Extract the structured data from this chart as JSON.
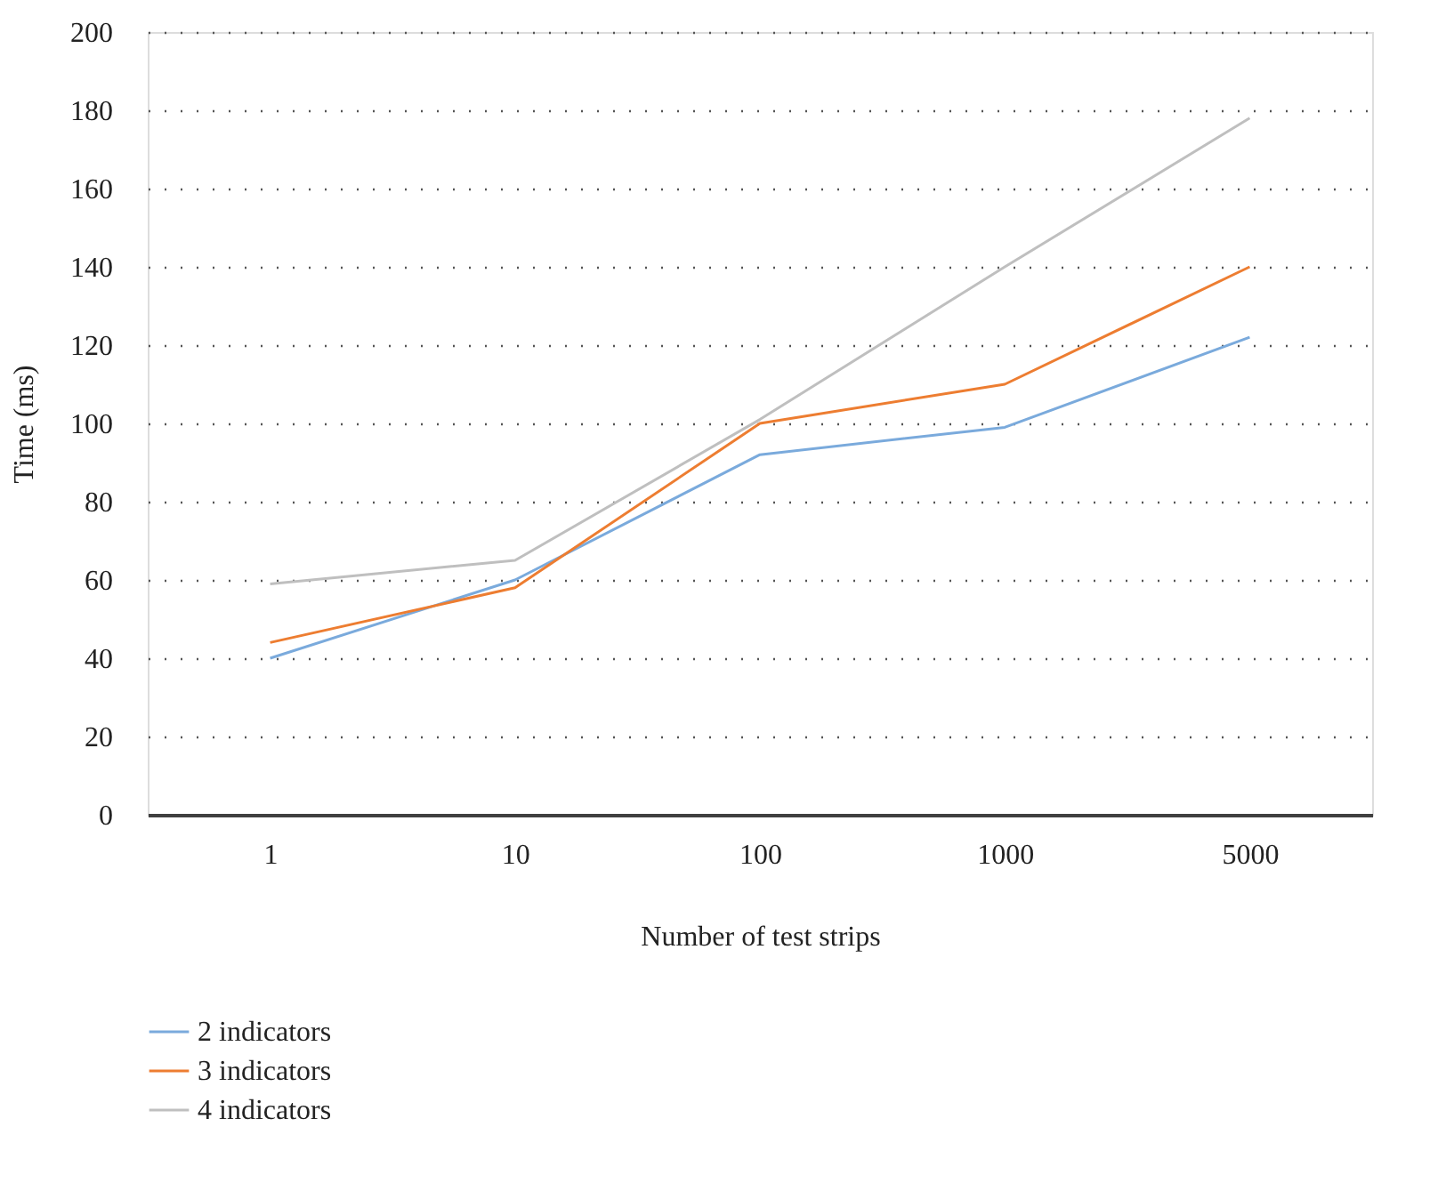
{
  "chart_data": {
    "type": "line",
    "xlabel": "Number of test strips",
    "ylabel": "Time (ms)",
    "categories": [
      "1",
      "10",
      "100",
      "1000",
      "5000"
    ],
    "series": [
      {
        "name": "2 indicators",
        "color": "#7aaadc",
        "values": [
          40,
          60,
          92,
          99,
          122
        ]
      },
      {
        "name": "3 indicators",
        "color": "#ed7d31",
        "values": [
          44,
          58,
          100,
          110,
          140
        ]
      },
      {
        "name": "4 indicators",
        "color": "#bfbfbf",
        "values": [
          59,
          65,
          101,
          140,
          178
        ]
      }
    ],
    "ylim": [
      0,
      200
    ],
    "yticks": [
      0,
      20,
      40,
      60,
      80,
      100,
      120,
      140,
      160,
      180,
      200
    ],
    "grid": "y",
    "legend": "bottom left",
    "marker": "none",
    "line_style": "solid"
  }
}
